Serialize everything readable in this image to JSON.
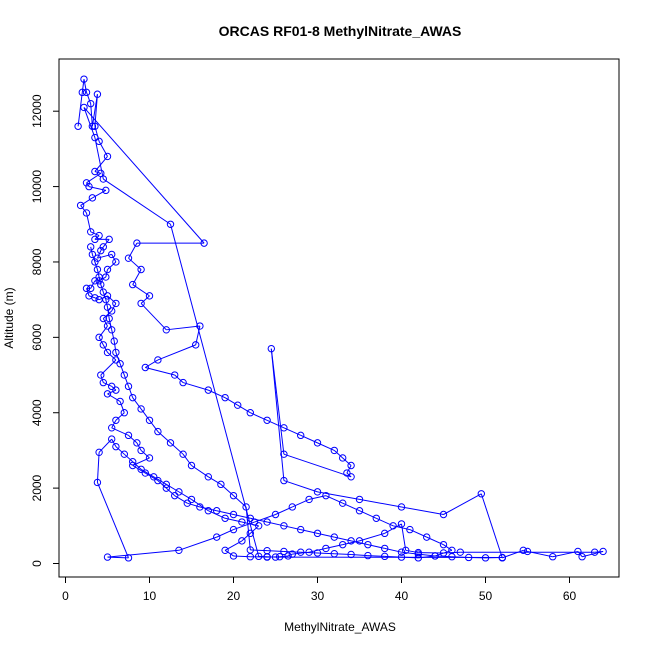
{
  "chart_data": {
    "type": "scatter",
    "title": "ORCAS RF01-8 MethylNitrate_AWAS",
    "xlabel": "MethylNitrate_AWAS",
    "ylabel": "Altitude (m)",
    "xlim": [
      0,
      65
    ],
    "ylim": [
      0,
      13000
    ],
    "x_ticks": [
      0,
      10,
      20,
      30,
      40,
      50,
      60
    ],
    "y_ticks": [
      0,
      2000,
      4000,
      6000,
      8000,
      10000,
      12000
    ],
    "grid": false,
    "legend": "none",
    "series": [
      {
        "color": "#0000ff",
        "marker": "open-circle",
        "connected": true,
        "points": [
          [
            1.5,
            11600
          ],
          [
            2.0,
            12500
          ],
          [
            2.2,
            12850
          ],
          [
            2.5,
            12500
          ],
          [
            3.0,
            12200
          ],
          [
            3.2,
            11600
          ],
          [
            3.8,
            12450
          ],
          [
            3.5,
            11600
          ],
          [
            4.0,
            11200
          ],
          [
            5.0,
            10800
          ],
          [
            3.5,
            10400
          ],
          [
            4.2,
            10350
          ],
          [
            2.5,
            10100
          ],
          [
            2.8,
            10000
          ],
          [
            4.8,
            9900
          ],
          [
            3.2,
            9700
          ],
          [
            1.8,
            9500
          ],
          [
            2.5,
            9300
          ],
          [
            3.0,
            8800
          ],
          [
            4.0,
            8700
          ],
          [
            3.5,
            8600
          ],
          [
            5.2,
            8600
          ],
          [
            4.5,
            8400
          ],
          [
            4.2,
            8300
          ],
          [
            3.8,
            8100
          ],
          [
            5.5,
            8200
          ],
          [
            6.0,
            8000
          ],
          [
            5.0,
            7800
          ],
          [
            4.8,
            7600
          ],
          [
            4.0,
            7500
          ],
          [
            3.5,
            7500
          ],
          [
            3.0,
            7300
          ],
          [
            2.5,
            7300
          ],
          [
            2.8,
            7100
          ],
          [
            3.5,
            7050
          ],
          [
            4.0,
            7000
          ],
          [
            5.0,
            7100
          ],
          [
            6.0,
            6900
          ],
          [
            5.5,
            6700
          ],
          [
            4.5,
            6500
          ],
          [
            5.0,
            6300
          ],
          [
            4.0,
            6000
          ],
          [
            4.5,
            5800
          ],
          [
            5.0,
            5600
          ],
          [
            6.0,
            5400
          ],
          [
            4.2,
            5000
          ],
          [
            4.5,
            4800
          ],
          [
            5.5,
            4700
          ],
          [
            6.0,
            4600
          ],
          [
            5.0,
            4500
          ],
          [
            6.5,
            4300
          ],
          [
            7.0,
            4000
          ],
          [
            6.0,
            3800
          ],
          [
            5.5,
            3600
          ],
          [
            7.5,
            3400
          ],
          [
            8.5,
            3200
          ],
          [
            9.0,
            3000
          ],
          [
            10.0,
            2800
          ],
          [
            8.0,
            2600
          ],
          [
            9.5,
            2400
          ],
          [
            11.0,
            2200
          ],
          [
            12.0,
            2000
          ],
          [
            13.0,
            1800
          ],
          [
            14.5,
            1600
          ],
          [
            16.0,
            1500
          ],
          [
            18.0,
            1400
          ],
          [
            20.0,
            1300
          ],
          [
            22.0,
            1200
          ],
          [
            24.0,
            1100
          ],
          [
            26.0,
            1000
          ],
          [
            28.0,
            900
          ],
          [
            30.0,
            800
          ],
          [
            32.0,
            700
          ],
          [
            34.0,
            600
          ],
          [
            36.0,
            500
          ],
          [
            38.0,
            400
          ],
          [
            40.0,
            300
          ],
          [
            42.0,
            250
          ],
          [
            44.0,
            200
          ],
          [
            46.0,
            180
          ],
          [
            48.0,
            160
          ],
          [
            50.0,
            150
          ],
          [
            52.0,
            160
          ],
          [
            25.0,
            170
          ],
          [
            24.0,
            180
          ],
          [
            23.0,
            190
          ],
          [
            12.5,
            9000
          ],
          [
            4.5,
            10200
          ],
          [
            3.5,
            11300
          ],
          [
            2.2,
            12100
          ],
          [
            16.5,
            8500
          ],
          [
            8.5,
            8500
          ],
          [
            7.5,
            8100
          ],
          [
            9.0,
            7800
          ],
          [
            8.0,
            7400
          ],
          [
            10.0,
            7100
          ],
          [
            9.0,
            6900
          ],
          [
            12.0,
            6200
          ],
          [
            16.0,
            6300
          ],
          [
            15.5,
            5800
          ],
          [
            11.0,
            5400
          ],
          [
            9.5,
            5200
          ],
          [
            13.0,
            5000
          ],
          [
            14.0,
            4800
          ],
          [
            17.0,
            4600
          ],
          [
            19.0,
            4400
          ],
          [
            20.5,
            4200
          ],
          [
            22.0,
            4000
          ],
          [
            24.0,
            3800
          ],
          [
            26.0,
            3600
          ],
          [
            28.0,
            3400
          ],
          [
            30.0,
            3200
          ],
          [
            32.0,
            3000
          ],
          [
            33.0,
            2800
          ],
          [
            34.0,
            2600
          ],
          [
            33.5,
            2400
          ],
          [
            34.0,
            2300
          ],
          [
            26.0,
            2900
          ],
          [
            24.5,
            5700
          ],
          [
            26.0,
            2200
          ],
          [
            30.0,
            1900
          ],
          [
            35.0,
            1700
          ],
          [
            40.0,
            1500
          ],
          [
            45.0,
            1300
          ],
          [
            49.5,
            1850
          ],
          [
            52.0,
            150
          ],
          [
            54.5,
            350
          ],
          [
            55.0,
            320
          ],
          [
            58.0,
            180
          ],
          [
            61.0,
            320
          ],
          [
            61.5,
            180
          ],
          [
            64.0,
            320
          ],
          [
            63.0,
            300
          ],
          [
            47.0,
            300
          ],
          [
            45.0,
            280
          ],
          [
            42.0,
            290
          ],
          [
            40.5,
            350
          ],
          [
            40.0,
            1050
          ],
          [
            38.0,
            800
          ],
          [
            35.0,
            600
          ],
          [
            33.0,
            500
          ],
          [
            31.0,
            400
          ],
          [
            29.0,
            300
          ],
          [
            27.0,
            250
          ],
          [
            26.5,
            200
          ],
          [
            25.5,
            180
          ],
          [
            24.0,
            170
          ],
          [
            22.0,
            180
          ],
          [
            20.0,
            200
          ],
          [
            19.0,
            350
          ],
          [
            21.0,
            600
          ],
          [
            22.0,
            800
          ],
          [
            23.0,
            1000
          ],
          [
            21.0,
            1100
          ],
          [
            19.0,
            1200
          ],
          [
            17.0,
            1400
          ],
          [
            15.0,
            1700
          ],
          [
            13.5,
            1900
          ],
          [
            12.0,
            2100
          ],
          [
            10.5,
            2300
          ],
          [
            9.0,
            2500
          ],
          [
            8.0,
            2700
          ],
          [
            7.0,
            2900
          ],
          [
            6.0,
            3100
          ],
          [
            5.5,
            3300
          ],
          [
            4.0,
            2950
          ],
          [
            3.8,
            2150
          ],
          [
            7.5,
            150
          ],
          [
            5.0,
            170
          ],
          [
            13.5,
            350
          ],
          [
            18.0,
            700
          ],
          [
            20.0,
            900
          ],
          [
            22.5,
            1100
          ],
          [
            25.0,
            1300
          ],
          [
            27.0,
            1500
          ],
          [
            29.0,
            1700
          ],
          [
            31.0,
            1800
          ],
          [
            33.0,
            1600
          ],
          [
            35.0,
            1400
          ],
          [
            37.0,
            1200
          ],
          [
            39.0,
            1000
          ],
          [
            41.0,
            900
          ],
          [
            43.0,
            700
          ],
          [
            45.0,
            500
          ],
          [
            46.0,
            350
          ],
          [
            44.0,
            200
          ],
          [
            42.0,
            150
          ],
          [
            40.0,
            170
          ],
          [
            38.0,
            190
          ],
          [
            36.0,
            210
          ],
          [
            34.0,
            240
          ],
          [
            32.0,
            260
          ],
          [
            30.0,
            280
          ],
          [
            28.0,
            300
          ],
          [
            26.0,
            320
          ],
          [
            24.0,
            340
          ],
          [
            22.0,
            360
          ],
          [
            21.5,
            1500
          ],
          [
            20.0,
            1800
          ],
          [
            18.5,
            2100
          ],
          [
            17.0,
            2300
          ],
          [
            15.0,
            2600
          ],
          [
            14.0,
            2900
          ],
          [
            12.5,
            3200
          ],
          [
            11.0,
            3500
          ],
          [
            10.0,
            3800
          ],
          [
            9.0,
            4100
          ],
          [
            8.0,
            4400
          ],
          [
            7.5,
            4700
          ],
          [
            7.0,
            5000
          ],
          [
            6.5,
            5300
          ],
          [
            6.0,
            5600
          ],
          [
            5.8,
            5900
          ],
          [
            5.5,
            6200
          ],
          [
            5.2,
            6500
          ],
          [
            5.0,
            6800
          ],
          [
            4.8,
            7000
          ],
          [
            4.5,
            7200
          ],
          [
            4.2,
            7400
          ],
          [
            4.0,
            7600
          ],
          [
            3.8,
            7800
          ],
          [
            3.5,
            8000
          ],
          [
            3.2,
            8200
          ],
          [
            3.0,
            8400
          ]
        ]
      }
    ]
  }
}
